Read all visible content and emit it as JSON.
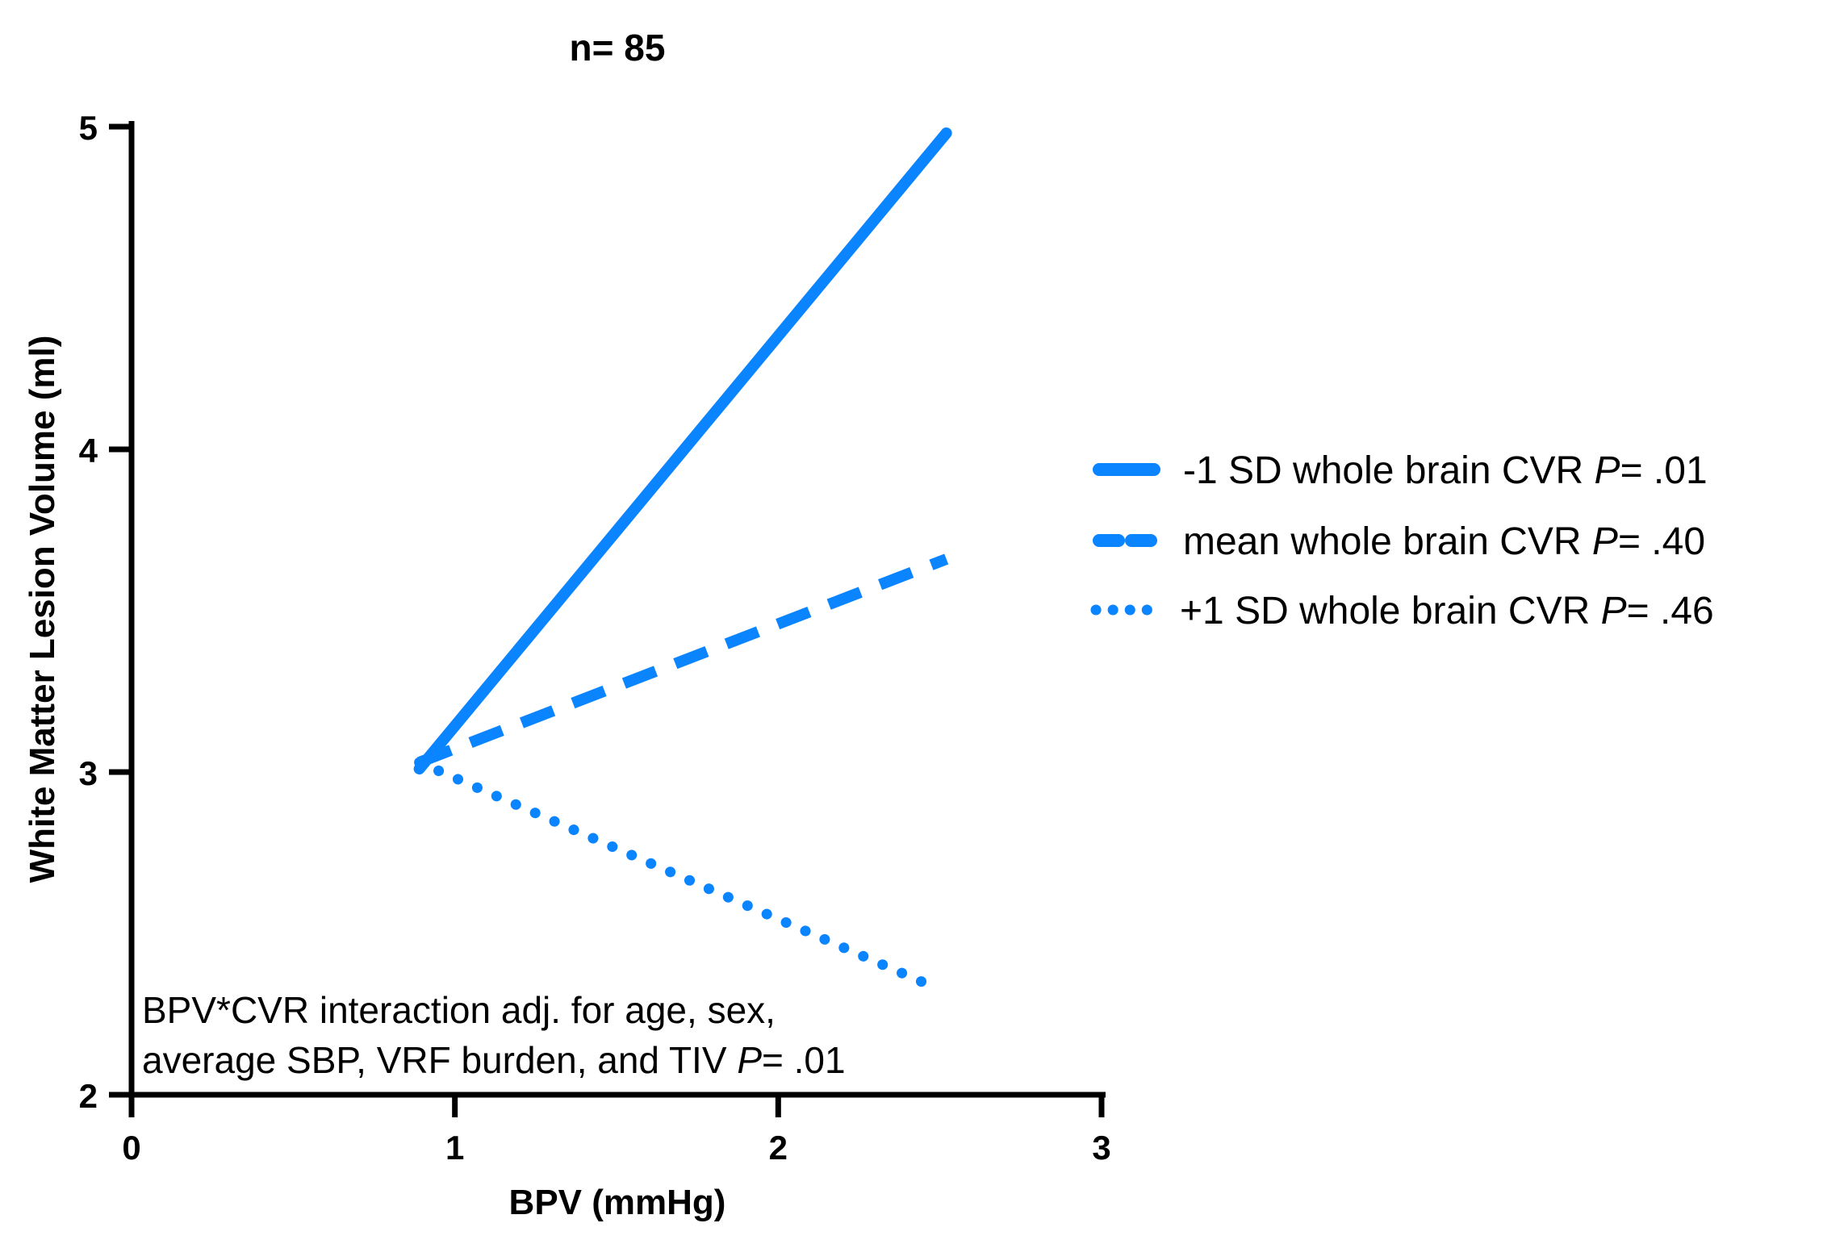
{
  "chart_data": {
    "type": "line",
    "title": "n= 85",
    "xlabel": "BPV (mmHg)",
    "ylabel": "White Matter Lesion Volume (ml)",
    "xlim": [
      0,
      3
    ],
    "ylim": [
      2,
      5
    ],
    "x_ticks": [
      0,
      1,
      2,
      3
    ],
    "y_ticks": [
      2,
      3,
      4,
      5
    ],
    "x_tick_labels": [
      "0",
      "1",
      "2",
      "3"
    ],
    "y_tick_labels": [
      "2",
      "3",
      "4",
      "5"
    ],
    "grid": false,
    "legend_position": "right",
    "line_color": "#0A84FF",
    "series": [
      {
        "name": "-1 SD whole brain CVR",
        "p_label": "P",
        "p_value": "= .01",
        "style": "solid",
        "points": [
          [
            0.89,
            3.01
          ],
          [
            2.52,
            4.98
          ]
        ]
      },
      {
        "name": "mean whole brain CVR",
        "p_label": "P",
        "p_value": "= .40",
        "style": "dashed",
        "points": [
          [
            0.89,
            3.03
          ],
          [
            2.52,
            3.66
          ]
        ]
      },
      {
        "name": "+1 SD whole brain CVR",
        "p_label": "P",
        "p_value": "= .46",
        "style": "dotted",
        "points": [
          [
            0.89,
            3.03
          ],
          [
            2.49,
            2.33
          ]
        ]
      }
    ],
    "annotation": {
      "line1": "BPV*CVR interaction adj. for age, sex,",
      "line2_prefix": "average SBP, VRF burden, and TIV ",
      "line2_p": "P",
      "line2_suffix": "= .01"
    }
  }
}
